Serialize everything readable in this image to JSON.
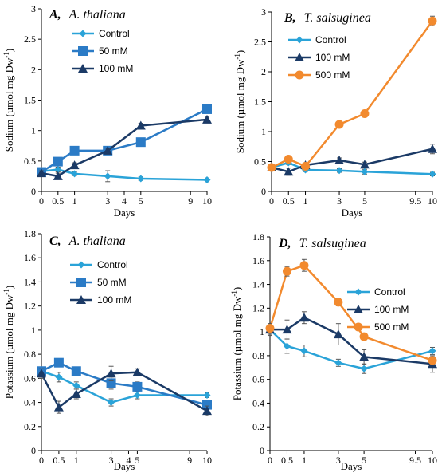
{
  "chart_data": [
    {
      "type": "line",
      "panel": "A,",
      "species": "A. thaliana",
      "xlabel": "Days",
      "ylabel": "Sodium (µmol mg Dw",
      "ylabel_sup": "-1",
      "ylabel_close": ")",
      "ylim": [
        0,
        3
      ],
      "yticks": [
        "0",
        "0.5",
        "1",
        "1.5",
        "2",
        "2.5",
        "3"
      ],
      "xticks": [
        "0",
        "0.5",
        "1",
        "3",
        "4",
        "5",
        "9",
        "10"
      ],
      "legend_position": "top-left",
      "series": [
        {
          "name": "Control",
          "color": "#2aa3d8",
          "marker": "diamond",
          "x": [
            0,
            0.5,
            1,
            3,
            5,
            10
          ],
          "y": [
            0.33,
            0.36,
            0.29,
            0.25,
            0.21,
            0.19
          ],
          "err": [
            0.03,
            0.04,
            0.03,
            0.09,
            0.03,
            0.03
          ]
        },
        {
          "name": "50 mM",
          "color": "#2b7bc6",
          "marker": "square",
          "x": [
            0,
            0.5,
            1,
            3,
            5,
            10
          ],
          "y": [
            0.32,
            0.49,
            0.67,
            0.67,
            0.81,
            1.35
          ],
          "err": [
            0.03,
            0.03,
            0.04,
            0.04,
            0.04,
            0.06
          ]
        },
        {
          "name": "100 mM",
          "color": "#1b3a66",
          "marker": "triangle",
          "x": [
            0,
            0.5,
            1,
            3,
            5,
            10
          ],
          "y": [
            0.3,
            0.25,
            0.43,
            0.67,
            1.08,
            1.18
          ],
          "err": [
            0.04,
            0.05,
            0.04,
            0.04,
            0.04,
            0.05
          ]
        }
      ]
    },
    {
      "type": "line",
      "panel": "B,",
      "species": "T. salsuginea",
      "xlabel": "Days",
      "ylabel": "Sodium (µmol mg Dw",
      "ylabel_sup": "-1",
      "ylabel_close": ")",
      "ylim": [
        0,
        3
      ],
      "yticks": [
        "0",
        "0.5",
        "1",
        "1.5",
        "2",
        "2.5",
        "3"
      ],
      "xticks": [
        "0",
        "0.5",
        "1",
        "3",
        "5",
        "9.5",
        "10"
      ],
      "legend_position": "top-left",
      "series": [
        {
          "name": "Control",
          "color": "#2aa3d8",
          "marker": "diamond",
          "x": [
            0,
            0.5,
            1,
            3,
            5,
            10
          ],
          "y": [
            0.4,
            0.48,
            0.36,
            0.35,
            0.33,
            0.29
          ],
          "err": [
            0.03,
            0.03,
            0.03,
            0.03,
            0.04,
            0.03
          ]
        },
        {
          "name": "100 mM",
          "color": "#1b3a66",
          "marker": "triangle",
          "x": [
            0,
            0.5,
            1,
            3,
            5,
            10
          ],
          "y": [
            0.4,
            0.33,
            0.44,
            0.52,
            0.45,
            0.71
          ],
          "err": [
            0.04,
            0.06,
            0.04,
            0.04,
            0.04,
            0.08
          ]
        },
        {
          "name": "500 mM",
          "color": "#f28a2e",
          "marker": "circle",
          "x": [
            0,
            0.5,
            1,
            3,
            5,
            10
          ],
          "y": [
            0.4,
            0.54,
            0.42,
            1.12,
            1.3,
            2.85
          ],
          "err": [
            0.04,
            0.04,
            0.04,
            0.05,
            0.04,
            0.08
          ]
        }
      ]
    },
    {
      "type": "line",
      "panel": "C,",
      "species": "A. thaliana",
      "xlabel": "Days",
      "ylabel": "Potassium (µmol mg Dw",
      "ylabel_sup": "-1",
      "ylabel_close": ")",
      "ylim": [
        0,
        1.8
      ],
      "yticks": [
        "0",
        "0.2",
        "0.4",
        "0.6",
        "0.8",
        "1",
        "1.2",
        "1.4",
        "1.6",
        "1.8"
      ],
      "xticks": [
        "0",
        "0.5",
        "1",
        "3",
        "4",
        "5",
        "9",
        "10"
      ],
      "legend_position": "top-left",
      "series": [
        {
          "name": "Control",
          "color": "#2aa3d8",
          "marker": "diamond",
          "x": [
            0,
            0.5,
            1,
            3,
            5,
            10
          ],
          "y": [
            0.66,
            0.61,
            0.54,
            0.4,
            0.46,
            0.46
          ],
          "err": [
            0.03,
            0.04,
            0.03,
            0.03,
            0.03,
            0.02
          ]
        },
        {
          "name": "50 mM",
          "color": "#2b7bc6",
          "marker": "square",
          "x": [
            0,
            0.5,
            1,
            3,
            5,
            10
          ],
          "y": [
            0.66,
            0.73,
            0.66,
            0.56,
            0.53,
            0.38
          ],
          "err": [
            0.03,
            0.03,
            0.03,
            0.05,
            0.04,
            0.03
          ]
        },
        {
          "name": "100 mM",
          "color": "#1b3a66",
          "marker": "triangle",
          "x": [
            0,
            0.5,
            1,
            3,
            5,
            10
          ],
          "y": [
            0.64,
            0.36,
            0.47,
            0.64,
            0.65,
            0.33
          ],
          "err": [
            0.04,
            0.05,
            0.04,
            0.06,
            0.03,
            0.04
          ]
        }
      ]
    },
    {
      "type": "line",
      "panel": "D,",
      "species": "T. salsuginea",
      "xlabel": "Days",
      "ylabel": "Potassium (µmol mg Dw",
      "ylabel_sup": "-1",
      "ylabel_close": ")",
      "ylim": [
        0,
        1.8
      ],
      "yticks": [
        "0",
        "0.2",
        "0.4",
        "0.6",
        "0.8",
        "1",
        "1.2",
        "1.4",
        "1.6",
        "1.8"
      ],
      "xticks": [
        "0",
        "0.5",
        "1",
        "3",
        "5",
        "9.5",
        "10"
      ],
      "legend_position": "top-right",
      "series": [
        {
          "name": "Control",
          "color": "#2aa3d8",
          "marker": "diamond",
          "x": [
            0,
            0.5,
            1,
            3,
            5,
            10
          ],
          "y": [
            1.02,
            0.88,
            0.84,
            0.74,
            0.69,
            0.84
          ],
          "err": [
            0.04,
            0.06,
            0.05,
            0.03,
            0.04,
            0.03
          ]
        },
        {
          "name": "100 mM",
          "color": "#1b3a66",
          "marker": "triangle",
          "x": [
            0,
            0.5,
            1,
            3,
            5,
            10
          ],
          "y": [
            1.02,
            1.02,
            1.12,
            0.98,
            0.79,
            0.73
          ],
          "err": [
            0.05,
            0.08,
            0.05,
            0.09,
            0.06,
            0.07
          ]
        },
        {
          "name": "500 mM",
          "color": "#f28a2e",
          "marker": "circle",
          "x": [
            0,
            0.5,
            1,
            3,
            5,
            10
          ],
          "y": [
            1.03,
            1.51,
            1.56,
            1.25,
            0.96,
            0.76
          ],
          "err": [
            0.04,
            0.04,
            0.05,
            0.03,
            0.03,
            0.03
          ]
        }
      ]
    }
  ]
}
